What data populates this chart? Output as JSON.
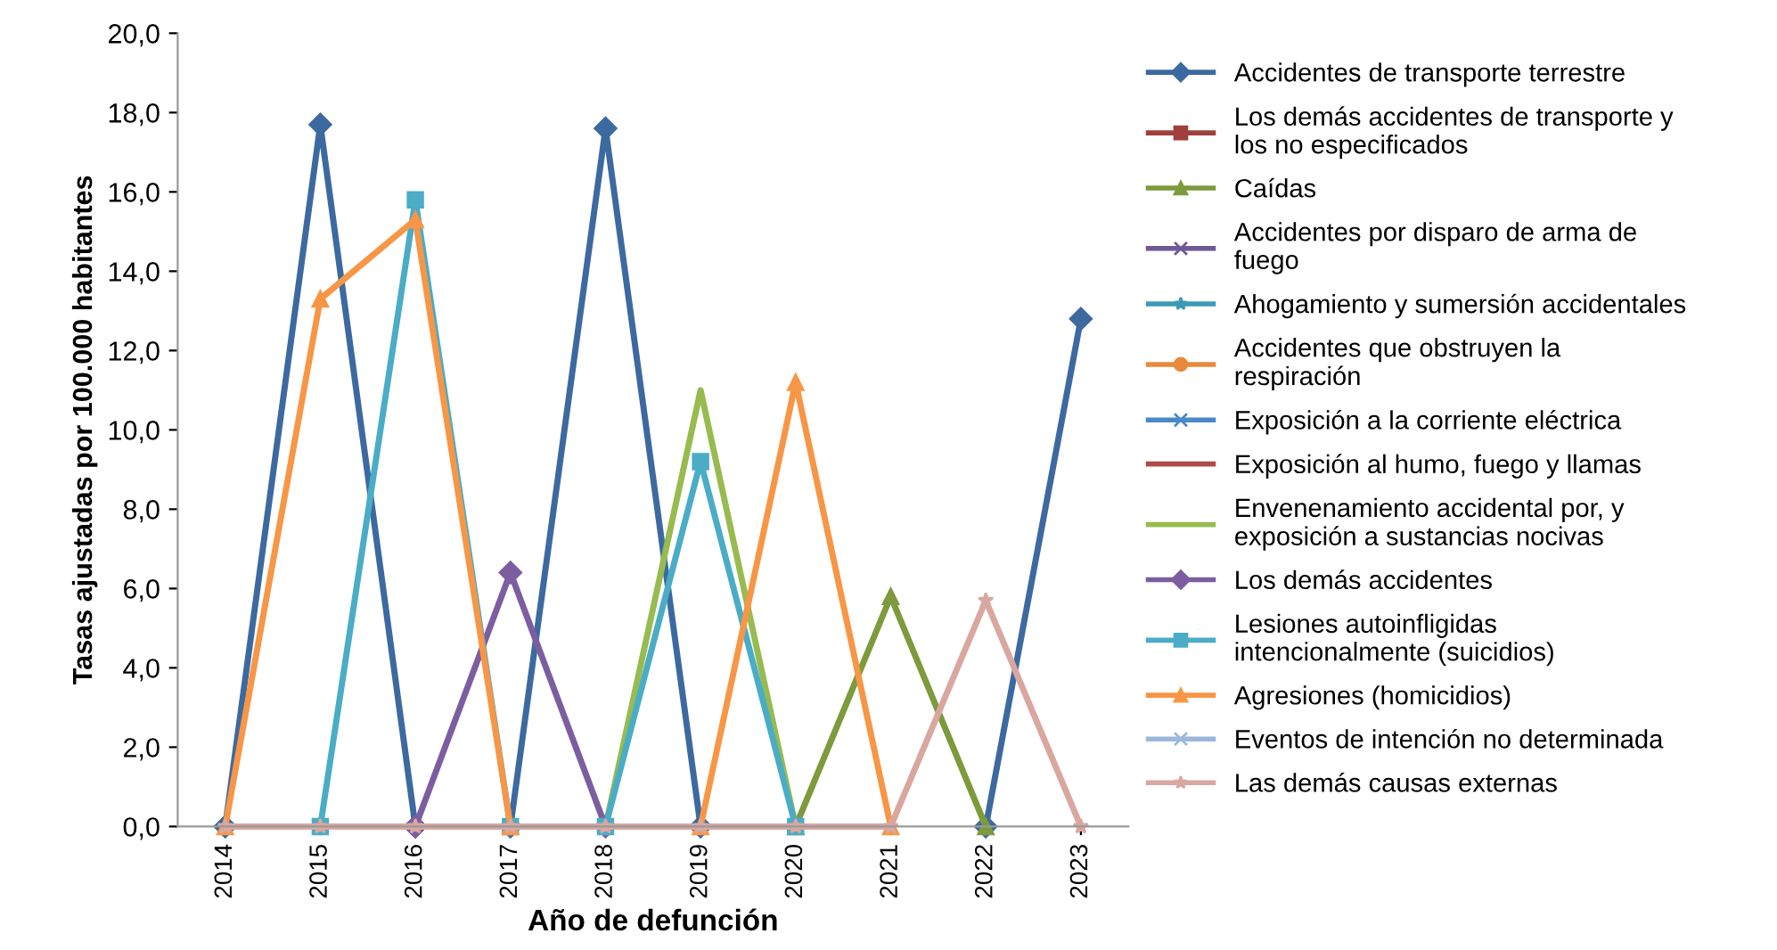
{
  "chart_data": {
    "type": "line",
    "xlabel": "Año de defunción",
    "ylabel": "Tasas ajustadas por 100.000 habitantes",
    "categories": [
      "2014",
      "2015",
      "2016",
      "2017",
      "2018",
      "2019",
      "2020",
      "2021",
      "2022",
      "2023"
    ],
    "ylim": [
      0,
      20
    ],
    "yticks": [
      {
        "value": 0,
        "label": "0,0"
      },
      {
        "value": 2,
        "label": "2,0"
      },
      {
        "value": 4,
        "label": "4,0"
      },
      {
        "value": 6,
        "label": "6,0"
      },
      {
        "value": 8,
        "label": "8,0"
      },
      {
        "value": 10,
        "label": "10,0"
      },
      {
        "value": 12,
        "label": "12,0"
      },
      {
        "value": 14,
        "label": "14,0"
      },
      {
        "value": 16,
        "label": "16,0"
      },
      {
        "value": 18,
        "label": "18,0"
      },
      {
        "value": 20,
        "label": "20,0"
      }
    ],
    "grid": false,
    "legend": "right",
    "line_style": "solid",
    "series": [
      {
        "name": "Accidentes de transporte terrestre",
        "color": "#3c6aa0",
        "marker": "diamond",
        "values": [
          0,
          17.7,
          0,
          0,
          17.6,
          0,
          null,
          null,
          0,
          12.8
        ]
      },
      {
        "name": "Los demás accidentes de transporte y los no especificados",
        "color": "#a0403c",
        "marker": "square",
        "values": [
          null,
          null,
          null,
          null,
          null,
          null,
          null,
          null,
          null,
          null
        ]
      },
      {
        "name": "Caídas",
        "color": "#7d9a3c",
        "marker": "triangle",
        "values": [
          null,
          null,
          null,
          null,
          null,
          null,
          0,
          5.8,
          0,
          null
        ]
      },
      {
        "name": "Accidentes por disparo de arma de fuego",
        "color": "#6e5896",
        "marker": "cross",
        "values": [
          null,
          null,
          null,
          null,
          null,
          null,
          null,
          null,
          null,
          null
        ]
      },
      {
        "name": "Ahogamiento y sumersión accidentales",
        "color": "#3b9ab5",
        "marker": "star",
        "values": [
          null,
          null,
          null,
          null,
          null,
          null,
          null,
          null,
          null,
          null
        ]
      },
      {
        "name": "Accidentes que obstruyen la respiración",
        "color": "#e88a3c",
        "marker": "circle",
        "values": [
          null,
          null,
          null,
          null,
          null,
          null,
          null,
          null,
          null,
          null
        ]
      },
      {
        "name": "Exposición a la corriente eléctrica",
        "color": "#4a88c8",
        "marker": "cross",
        "values": [
          null,
          null,
          null,
          null,
          null,
          null,
          null,
          null,
          null,
          null
        ]
      },
      {
        "name": "Exposición al humo, fuego y llamas",
        "color": "#b04a44",
        "marker": "none",
        "values": [
          null,
          null,
          null,
          null,
          null,
          null,
          null,
          null,
          null,
          null
        ]
      },
      {
        "name": "Envenenamiento accidental por, y exposición a sustancias nocivas",
        "color": "#98bb50",
        "marker": "none",
        "values": [
          null,
          null,
          null,
          null,
          0,
          11.0,
          0,
          null,
          null,
          null
        ]
      },
      {
        "name": "Los demás accidentes",
        "color": "#7c5ea0",
        "marker": "diamond",
        "values": [
          null,
          null,
          0,
          6.4,
          0,
          null,
          null,
          null,
          null,
          null
        ]
      },
      {
        "name": "Lesiones autoinfligidas intencionalmente (suicidios)",
        "color": "#4bacc6",
        "marker": "square",
        "values": [
          null,
          0,
          15.8,
          0,
          0,
          9.2,
          0,
          null,
          null,
          null
        ]
      },
      {
        "name": "Agresiones (homicidios)",
        "color": "#f79646",
        "marker": "triangle",
        "values": [
          0,
          13.3,
          15.3,
          0,
          null,
          0,
          11.2,
          0,
          null,
          null
        ]
      },
      {
        "name": "Eventos de intención no determinada",
        "color": "#9bb7d9",
        "marker": "cross",
        "values": [
          null,
          null,
          null,
          null,
          null,
          null,
          null,
          null,
          null,
          null
        ]
      },
      {
        "name": "Las demás causas externas",
        "color": "#d9a7a0",
        "marker": "star",
        "values": [
          0,
          0,
          0,
          0,
          0,
          0,
          0,
          0,
          5.7,
          0
        ]
      }
    ]
  }
}
